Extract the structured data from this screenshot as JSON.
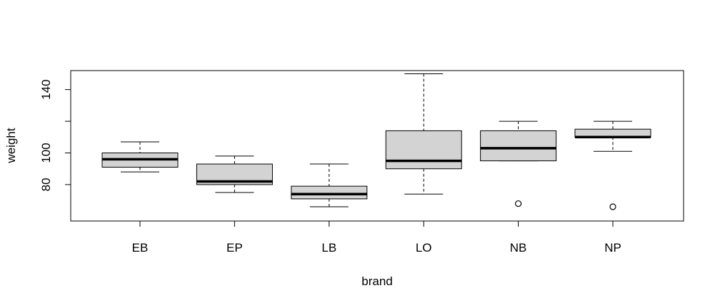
{
  "chart_data": {
    "type": "box",
    "title": "",
    "xlabel": "brand",
    "ylabel": "weight",
    "ylim": [
      57,
      152
    ],
    "yticks": [
      80,
      100,
      140
    ],
    "box_fill": "#d3d3d3",
    "grid": false,
    "categories": [
      "EB",
      "EP",
      "LB",
      "LO",
      "NB",
      "NP"
    ],
    "boxes": [
      {
        "name": "EB",
        "lower_whisker": 88,
        "q1": 91,
        "median": 96,
        "q3": 100,
        "upper_whisker": 107,
        "outliers": []
      },
      {
        "name": "EP",
        "lower_whisker": 75,
        "q1": 80,
        "median": 82,
        "q3": 93,
        "upper_whisker": 98,
        "outliers": []
      },
      {
        "name": "LB",
        "lower_whisker": 66,
        "q1": 71,
        "median": 74,
        "q3": 79,
        "upper_whisker": 93,
        "outliers": []
      },
      {
        "name": "LO",
        "lower_whisker": 74,
        "q1": 90,
        "median": 95,
        "q3": 114,
        "upper_whisker": 150,
        "outliers": []
      },
      {
        "name": "NB",
        "lower_whisker": 95,
        "q1": 95,
        "median": 103,
        "q3": 114,
        "upper_whisker": 120,
        "outliers": [
          68
        ]
      },
      {
        "name": "NP",
        "lower_whisker": 101,
        "q1": 110,
        "median": 110,
        "q3": 115,
        "upper_whisker": 120,
        "outliers": [
          66
        ]
      }
    ]
  }
}
